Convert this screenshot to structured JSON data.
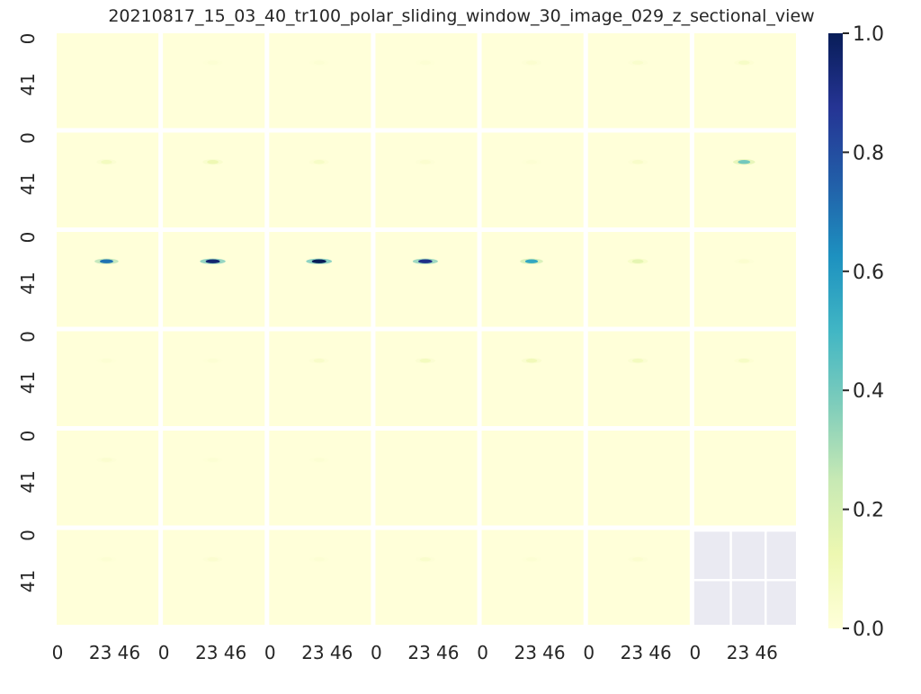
{
  "chart_data": {
    "type": "heatmap",
    "title": "20210817_15_03_40_tr100_polar_sliding_window_30_image_029_z_sectional_view",
    "rows": 6,
    "cols": 7,
    "y_tick_labels": [
      "0",
      "41"
    ],
    "x_tick_labels": [
      "0",
      "23",
      "46"
    ],
    "colorbar": {
      "min": 0.0,
      "max": 1.0,
      "ticks": [
        "0.0",
        "0.2",
        "0.4",
        "0.6",
        "0.8",
        "1.0"
      ],
      "colormap": "YlGnBu"
    },
    "colors": {
      "panel_background": "#ffffd9",
      "empty_panel": "#eaeaf2",
      "grid_line": "#ffffff"
    },
    "panel_peaks": [
      [
        0.0,
        0.02,
        0.02,
        0.02,
        0.03,
        0.04,
        0.06
      ],
      [
        0.08,
        0.12,
        0.06,
        0.03,
        0.02,
        0.05,
        0.4
      ],
      [
        0.7,
        0.95,
        1.0,
        0.9,
        0.55,
        0.15,
        0.03
      ],
      [
        0.02,
        0.02,
        0.05,
        0.08,
        0.1,
        0.08,
        0.06
      ],
      [
        0.03,
        0.02,
        0.02,
        0.0,
        0.0,
        0.0,
        0.0
      ],
      [
        0.02,
        0.03,
        0.02,
        0.04,
        0.02,
        0.03,
        null
      ]
    ]
  }
}
